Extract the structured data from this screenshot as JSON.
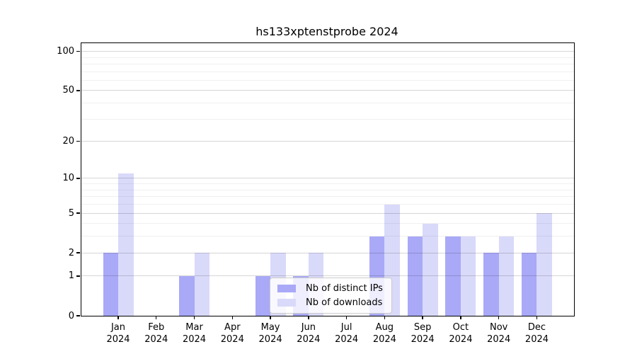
{
  "title": "hs133xptenstprobe 2024",
  "chart_data": {
    "type": "bar",
    "title": "hs133xptenstprobe 2024",
    "categories": [
      "Jan",
      "Feb",
      "Mar",
      "Apr",
      "May",
      "Jun",
      "Jul",
      "Aug",
      "Sep",
      "Oct",
      "Nov",
      "Dec"
    ],
    "year": "2024",
    "series": [
      {
        "name": "Nb of distinct IPs",
        "color": "#a9a9f7",
        "values": [
          2,
          0,
          1,
          0,
          1,
          1,
          0,
          3,
          3,
          3,
          2,
          2
        ]
      },
      {
        "name": "Nb of downloads",
        "color": "#d9d9fa",
        "values": [
          11,
          0,
          2,
          0,
          2,
          2,
          0,
          6,
          4,
          3,
          3,
          5
        ]
      }
    ],
    "yscale": "log10(1+y)",
    "ylim": [
      0,
      116
    ],
    "y_major_ticks": [
      0,
      1,
      2,
      5,
      10,
      20,
      50,
      100
    ],
    "y_minor_gridlines": [
      3,
      4,
      6,
      7,
      8,
      9,
      30,
      40,
      60,
      70,
      80,
      90
    ],
    "grid": true,
    "legend_position": "lower-center"
  }
}
